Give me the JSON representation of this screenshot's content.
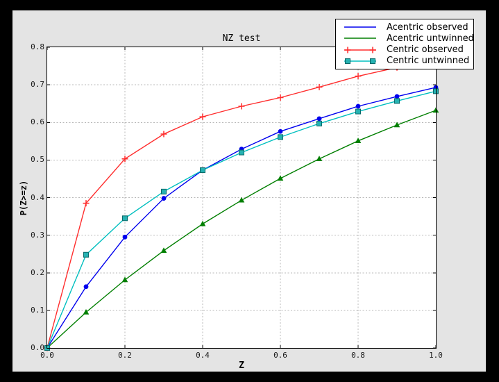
{
  "chart_data": {
    "type": "line",
    "title": "NZ test",
    "xlabel": "Z",
    "ylabel": "P(Z>=z)",
    "xlim": [
      0.0,
      1.0
    ],
    "ylim": [
      0.0,
      0.8
    ],
    "xticks": [
      0.0,
      0.2,
      0.4,
      0.6,
      0.8,
      1.0
    ],
    "yticks": [
      0.0,
      0.1,
      0.2,
      0.3,
      0.4,
      0.5,
      0.6,
      0.7,
      0.8
    ],
    "grid": true,
    "legend_position": "upper right, overlapping top-right corner of axes",
    "x": [
      0.0,
      0.1,
      0.2,
      0.3,
      0.4,
      0.5,
      0.6,
      0.7,
      0.8,
      0.9,
      1.0
    ],
    "series": [
      {
        "name": "Acentric observed",
        "color": "#0000ee",
        "marker": "circle",
        "legend_markers": false,
        "values": [
          0.0,
          0.163,
          0.295,
          0.398,
          0.473,
          0.529,
          0.576,
          0.61,
          0.643,
          0.669,
          0.693
        ]
      },
      {
        "name": "Acentric untwinned",
        "color": "#007f00",
        "marker": "triangle",
        "legend_markers": false,
        "values": [
          0.0,
          0.095,
          0.181,
          0.259,
          0.33,
          0.393,
          0.451,
          0.503,
          0.551,
          0.593,
          0.632
        ]
      },
      {
        "name": "Centric observed",
        "color": "#ff2d2d",
        "marker": "plus",
        "legend_markers": true,
        "values": [
          0.0,
          0.385,
          0.503,
          0.569,
          0.615,
          0.643,
          0.666,
          0.694,
          0.723,
          0.746,
          0.765
        ]
      },
      {
        "name": "Centric untwinned",
        "color": "#00bfbf",
        "marker": "square",
        "marker_fill": "#26b2b2",
        "marker_edge": "#0a6a6a",
        "legend_markers": true,
        "values": [
          0.0,
          0.248,
          0.345,
          0.416,
          0.473,
          0.52,
          0.561,
          0.597,
          0.629,
          0.657,
          0.683
        ]
      }
    ]
  },
  "colors": {
    "frame_bg": "#000000",
    "figure_bg": "#e4e4e4",
    "plot_bg": "#ffffff",
    "grid": "#b8b8b8",
    "axis": "#000000"
  }
}
